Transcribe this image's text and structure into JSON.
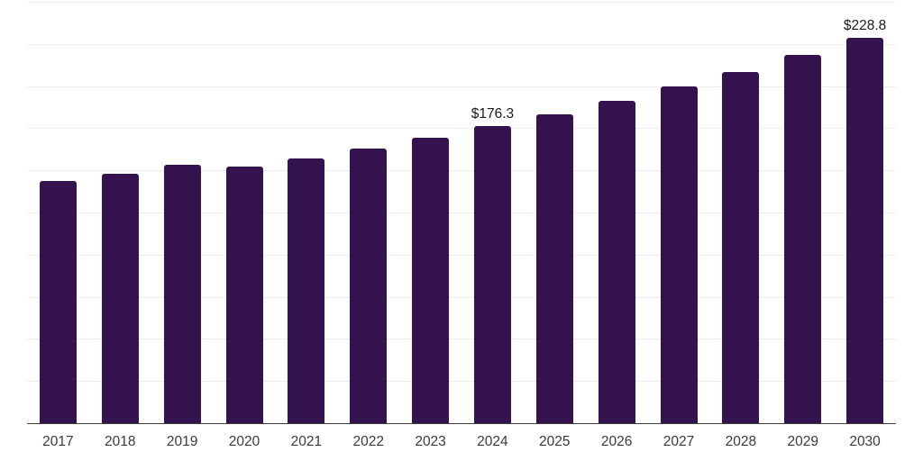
{
  "chart_data": {
    "type": "bar",
    "title": "",
    "xlabel": "",
    "ylabel": "",
    "categories": [
      "2017",
      "2018",
      "2019",
      "2020",
      "2021",
      "2022",
      "2023",
      "2024",
      "2025",
      "2026",
      "2027",
      "2028",
      "2029",
      "2030"
    ],
    "values": [
      143.5,
      148.2,
      153.5,
      152.4,
      156.8,
      162.9,
      169.2,
      176.3,
      183.2,
      191.4,
      199.8,
      208.2,
      218.5,
      228.8
    ],
    "data_labels": [
      {
        "index": 7,
        "text": "$176.3"
      },
      {
        "index": 13,
        "text": "$228.8"
      }
    ],
    "ylim": [
      0,
      250
    ],
    "gridline_step": 25,
    "grid": true,
    "legend_position": "none",
    "colors": {
      "bar": "#33124e",
      "gridline": "#ededed",
      "axis": "#3d3d3d",
      "tick_label": "#3a3a3a",
      "data_label": "#1a1a1a",
      "background": "#ffffff"
    }
  }
}
